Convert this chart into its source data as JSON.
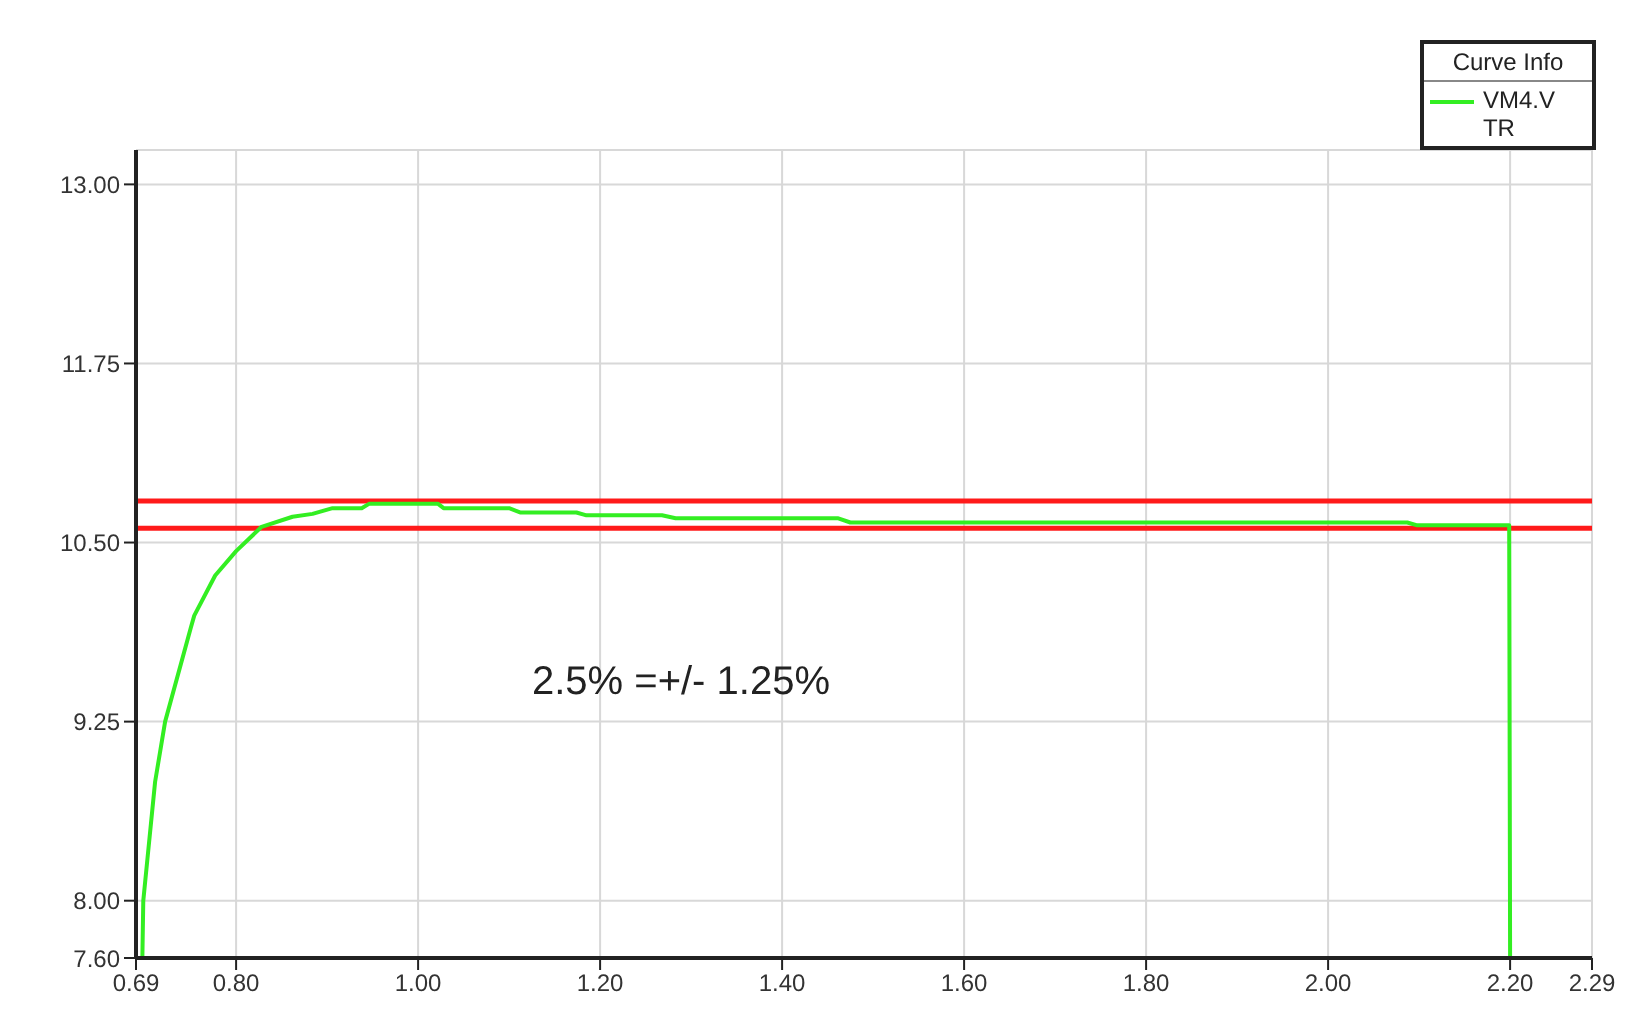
{
  "chart_data": {
    "type": "line",
    "legend_title": "Curve Info",
    "annotations": [
      "2.5% =+/- 1.25%"
    ],
    "xlim": [
      0.69,
      2.29
    ],
    "xticks": [
      0.69,
      {
        "value": 0.8,
        "label": "0.80"
      },
      {
        "value": 1.0,
        "label": "1.00"
      },
      {
        "value": 1.2,
        "label": "1.20"
      },
      {
        "value": 1.4,
        "label": "1.40"
      },
      {
        "value": 1.6,
        "label": "1.60"
      },
      {
        "value": 1.8,
        "label": "1.80"
      },
      {
        "value": 2.0,
        "label": "2.00"
      },
      {
        "value": 2.2,
        "label": "2.20"
      },
      2.29
    ],
    "ylim": [
      7.6,
      13.24
    ],
    "yticks": [
      {
        "value": 7.6,
        "label": "7.60"
      },
      {
        "value": 8.0,
        "label": "8.00"
      },
      9.25,
      {
        "value": 10.5,
        "label": "10.50"
      },
      11.75,
      {
        "value": 13.0,
        "label": "13.00"
      }
    ],
    "grid": true,
    "legend": "top right",
    "marker": "none",
    "line_style": "solid",
    "ref_lines": [
      {
        "axis": "y",
        "value": 10.79,
        "color": "#ff1a1a"
      },
      {
        "axis": "y",
        "value": 10.6,
        "color": "#ff1a1a"
      }
    ],
    "series": [
      {
        "name": "VM4.V TR",
        "color": "#33ee22",
        "x": [
          0.697,
          0.698,
          0.703,
          0.711,
          0.722,
          0.75,
          0.754,
          0.777,
          0.8,
          0.828,
          0.862,
          0.884,
          0.906,
          0.938,
          0.946,
          1.022,
          1.028,
          1.1,
          1.112,
          1.174,
          1.185,
          1.268,
          1.283,
          1.461,
          1.475,
          2.087,
          2.098,
          2.199,
          2.2
        ],
        "values": [
          7.6,
          8.0,
          8.32,
          8.83,
          9.25,
          9.9,
          9.99,
          10.27,
          10.44,
          10.61,
          10.68,
          10.7,
          10.74,
          10.74,
          10.77,
          10.77,
          10.74,
          10.74,
          10.71,
          10.71,
          10.69,
          10.69,
          10.67,
          10.67,
          10.64,
          10.64,
          10.62,
          10.62,
          7.6
        ]
      }
    ]
  }
}
